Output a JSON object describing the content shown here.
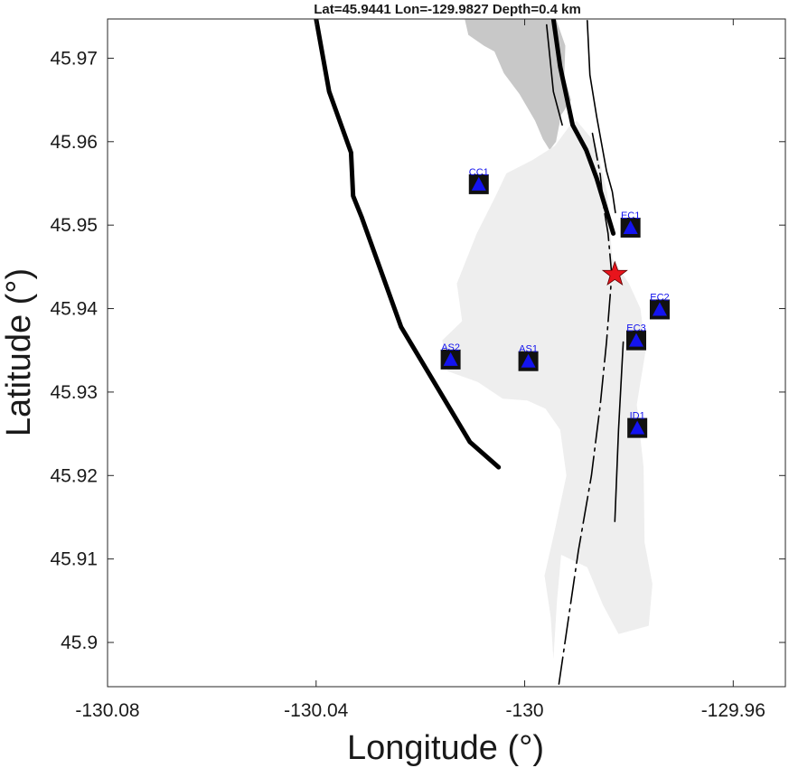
{
  "title": "Lat=45.9441  Lon=-129.9827  Depth=0.4 km",
  "x_axis": {
    "label": "Longitude (°)",
    "range": [
      -130.08,
      -129.95
    ],
    "ticks": [
      -130.08,
      -130.04,
      -130.0,
      -129.96
    ],
    "tick_labels": [
      "-130.08",
      "-130.04",
      "-130",
      "-129.96"
    ]
  },
  "y_axis": {
    "label": "Latitude (°)",
    "range": [
      45.8947,
      45.9747
    ],
    "ticks": [
      45.9,
      45.91,
      45.92,
      45.93,
      45.94,
      45.95,
      45.96,
      45.97
    ],
    "tick_labels": [
      "45.9",
      "45.91",
      "45.92",
      "45.93",
      "45.94",
      "45.95",
      "45.96",
      "45.97"
    ]
  },
  "event": {
    "lat": 45.9441,
    "lon": -129.9827,
    "depth_km": 0.4,
    "marker": "red-star-icon",
    "color": "#e8141c"
  },
  "stations": [
    {
      "name": "CC1",
      "lon": -130.0088,
      "lat": 45.9549
    },
    {
      "name": "EC1",
      "lon": -129.9797,
      "lat": 45.9497
    },
    {
      "name": "EC2",
      "lon": -129.9741,
      "lat": 45.9399
    },
    {
      "name": "EC3",
      "lon": -129.9786,
      "lat": 45.9362
    },
    {
      "name": "AS2",
      "lon": -130.0142,
      "lat": 45.9339
    },
    {
      "name": "AS1",
      "lon": -129.9993,
      "lat": 45.9337
    },
    {
      "name": "ID1",
      "lon": -129.9784,
      "lat": 45.9257
    }
  ],
  "colors": {
    "station_square": "#111111",
    "station_triangle": "#1414f0",
    "station_label": "#1010ee",
    "lava_flow_dark": "#c8c8c8",
    "lava_flow_light": "#eeeeee",
    "fault_line": "#000000"
  },
  "chart_data": {
    "type": "scatter",
    "title": "Lat=45.9441  Lon=-129.9827  Depth=0.4 km",
    "xlabel": "Longitude (°)",
    "ylabel": "Latitude (°)",
    "xlim": [
      -130.08,
      -129.95
    ],
    "ylim": [
      45.8947,
      45.9747
    ],
    "grid": false,
    "series": [
      {
        "name": "",
        "points": [
          {
            "label": "CC1",
            "x": -130.0088,
            "y": 45.9549
          },
          {
            "label": "EC1",
            "x": -129.9797,
            "y": 45.9497
          },
          {
            "label": "EC2",
            "x": -129.9741,
            "y": 45.9399
          },
          {
            "label": "EC3",
            "x": -129.9786,
            "y": 45.9362
          },
          {
            "label": "AS2",
            "x": -130.0142,
            "y": 45.9339
          },
          {
            "label": "AS1",
            "x": -129.9993,
            "y": 45.9337
          },
          {
            "label": "ID1",
            "x": -129.9784,
            "y": 45.9257
          }
        ]
      },
      {
        "name": "",
        "points": [
          {
            "label": "",
            "x": -129.9827,
            "y": 45.9441
          }
        ]
      }
    ],
    "lines": [
      {
        "kind": "thick",
        "coords": [
          [
            -130.04,
            45.9747
          ],
          [
            -130.0375,
            45.966
          ],
          [
            -130.0333,
            45.9587
          ],
          [
            -130.0329,
            45.9535
          ],
          [
            -130.0313,
            45.951
          ],
          [
            -130.0237,
            45.9378
          ],
          [
            -130.0105,
            45.924
          ],
          [
            -130.005,
            45.921
          ]
        ]
      },
      {
        "kind": "thick",
        "coords": [
          [
            -129.9945,
            45.9747
          ],
          [
            -129.9932,
            45.969
          ],
          [
            -129.9908,
            45.962
          ],
          [
            -129.9882,
            45.959
          ],
          [
            -129.9862,
            45.9556
          ],
          [
            -129.9843,
            45.9517
          ],
          [
            -129.983,
            45.949
          ]
        ]
      },
      {
        "kind": "thin",
        "coords": [
          [
            -129.9958,
            45.974
          ],
          [
            -129.9945,
            45.966
          ],
          [
            -129.9928,
            45.962
          ]
        ]
      },
      {
        "kind": "thin",
        "coords": [
          [
            -129.988,
            45.9745
          ],
          [
            -129.9875,
            45.968
          ],
          [
            -129.9862,
            45.963
          ],
          [
            -129.9843,
            45.9565
          ],
          [
            -129.9832,
            45.954
          ],
          [
            -129.9826,
            45.9515
          ]
        ]
      },
      {
        "kind": "dashed",
        "coords": [
          [
            -129.987,
            45.961
          ],
          [
            -129.9855,
            45.956
          ],
          [
            -129.9848,
            45.952
          ],
          [
            -129.984,
            45.949
          ],
          [
            -129.9833,
            45.944
          ],
          [
            -129.9843,
            45.936
          ],
          [
            -129.9855,
            45.9285
          ],
          [
            -129.9872,
            45.92
          ],
          [
            -129.9897,
            45.911
          ],
          [
            -129.9918,
            45.902
          ],
          [
            -129.9935,
            45.8947
          ]
        ]
      },
      {
        "kind": "thin",
        "coords": [
          [
            -129.9811,
            45.936
          ],
          [
            -129.982,
            45.9255
          ],
          [
            -129.9827,
            45.9145
          ]
        ]
      }
    ],
    "lava_flows": [
      {
        "shade": "dark",
        "coords": [
          [
            -130.0115,
            45.9747
          ],
          [
            -129.994,
            45.9747
          ],
          [
            -129.9922,
            45.9715
          ],
          [
            -129.9924,
            45.9678
          ],
          [
            -129.9911,
            45.965
          ],
          [
            -129.993,
            45.9632
          ],
          [
            -129.994,
            45.96
          ],
          [
            -129.9952,
            45.959
          ],
          [
            -129.9965,
            45.9603
          ],
          [
            -129.998,
            45.9625
          ],
          [
            -130.001,
            45.9657
          ],
          [
            -130.004,
            45.9682
          ],
          [
            -130.0058,
            45.9708
          ],
          [
            -130.0078,
            45.9715
          ],
          [
            -130.0108,
            45.9728
          ]
        ]
      },
      {
        "shade": "light",
        "coords": [
          [
            -129.99,
            45.9625
          ],
          [
            -129.9864,
            45.9598
          ],
          [
            -129.9842,
            45.954
          ],
          [
            -129.9832,
            45.946
          ],
          [
            -129.98,
            45.943
          ],
          [
            -129.9778,
            45.94
          ],
          [
            -129.9768,
            45.935
          ],
          [
            -129.9785,
            45.9285
          ],
          [
            -129.9772,
            45.921
          ],
          [
            -129.977,
            45.912
          ],
          [
            -129.9755,
            45.907
          ],
          [
            -129.9762,
            45.902
          ],
          [
            -129.982,
            45.901
          ],
          [
            -129.985,
            45.9045
          ],
          [
            -129.988,
            45.909
          ],
          [
            -129.993,
            45.9105
          ],
          [
            -129.9938,
            45.905
          ],
          [
            -129.9945,
            45.898
          ],
          [
            -129.995,
            45.903
          ],
          [
            -129.9962,
            45.908
          ],
          [
            -129.9942,
            45.9135
          ],
          [
            -129.992,
            45.92
          ],
          [
            -129.9932,
            45.9255
          ],
          [
            -129.996,
            45.928
          ],
          [
            -129.9995,
            45.929
          ],
          [
            -130.0042,
            45.9292
          ],
          [
            -130.009,
            45.9312
          ],
          [
            -130.0148,
            45.9325
          ],
          [
            -130.0158,
            45.9362
          ],
          [
            -130.012,
            45.9385
          ],
          [
            -130.013,
            45.943
          ],
          [
            -130.0092,
            45.949
          ],
          [
            -130.0058,
            45.9532
          ],
          [
            -130.0035,
            45.9562
          ],
          [
            -129.9985,
            45.9578
          ],
          [
            -129.9942,
            45.9595
          ],
          [
            -129.9915,
            45.9618
          ]
        ]
      }
    ]
  }
}
